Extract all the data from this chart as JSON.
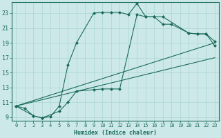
{
  "xlabel": "Humidex (Indice chaleur)",
  "bg_color": "#cce8e8",
  "grid_color": "#b0d8d8",
  "line_color": "#1a6b5a",
  "xlim": [
    -0.5,
    23.5
  ],
  "ylim": [
    8.5,
    24.5
  ],
  "xticks": [
    0,
    1,
    2,
    3,
    4,
    5,
    6,
    7,
    8,
    9,
    10,
    11,
    12,
    13,
    14,
    15,
    16,
    17,
    18,
    19,
    20,
    21,
    22,
    23
  ],
  "yticks": [
    9,
    11,
    13,
    15,
    17,
    19,
    21,
    23
  ],
  "line1_x": [
    0,
    1,
    2,
    3,
    4,
    5,
    6,
    7,
    9,
    10,
    11,
    12,
    13,
    14,
    15,
    16,
    17,
    20,
    21,
    22,
    23
  ],
  "line1_y": [
    10.5,
    10.2,
    9.2,
    8.9,
    9.1,
    10.5,
    16.0,
    19.0,
    23.0,
    23.1,
    23.1,
    23.1,
    22.8,
    24.3,
    22.5,
    22.5,
    22.5,
    20.3,
    20.2,
    20.2,
    19.2
  ],
  "line2_x": [
    0,
    2,
    3,
    5,
    6,
    7,
    9,
    10,
    11,
    12,
    14,
    15,
    16,
    17,
    18,
    20,
    21,
    22,
    23
  ],
  "line2_y": [
    10.5,
    9.2,
    8.9,
    9.8,
    11.0,
    12.5,
    12.7,
    12.8,
    12.8,
    12.8,
    22.8,
    22.5,
    22.5,
    21.5,
    21.5,
    20.3,
    20.2,
    20.2,
    18.6
  ],
  "line3_x": [
    0,
    23
  ],
  "line3_y": [
    10.5,
    19.0
  ],
  "line4_x": [
    0,
    23
  ],
  "line4_y": [
    10.5,
    17.0
  ]
}
